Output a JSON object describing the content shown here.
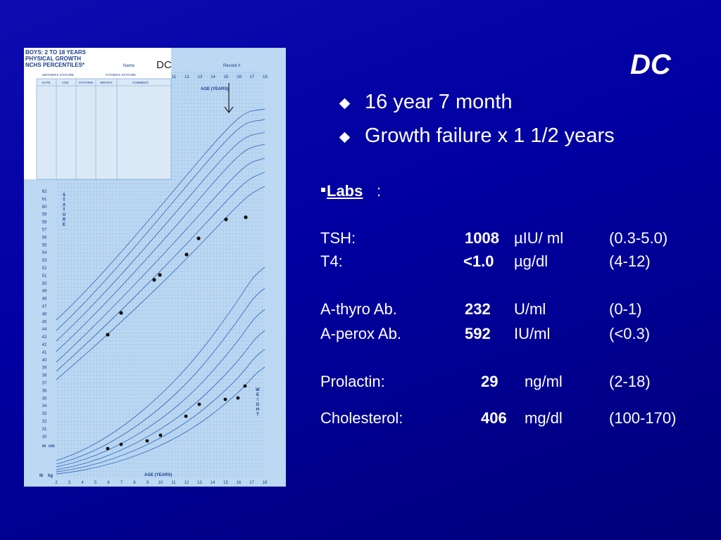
{
  "title": "DC",
  "bullets": [
    "16 year 7 month",
    "Growth failure x 1 1/2 years"
  ],
  "labs": {
    "heading": "Labs",
    "colon": ":",
    "rows": [
      [
        "TSH:",
        "1008",
        "µIU/ ml",
        "(0.3-5.0)"
      ],
      [
        "T4:",
        "<1.0",
        "µg/dl",
        "(4-12)"
      ],
      [
        "A-thyro Ab.",
        "232",
        "U/ml",
        "(0-1)"
      ],
      [
        "A-perox Ab.",
        "592",
        "IU/ml",
        "(<0.3)"
      ],
      [
        "Prolactin:",
        "29",
        "ng/ml",
        "(2-18)"
      ],
      [
        "Cholesterol:",
        "406",
        "mg/dl",
        "(100-170)"
      ]
    ]
  },
  "growth_chart": {
    "header": [
      "BOYS: 2 TO 18 YEARS",
      "PHYSICAL GROWTH",
      "NCHS PERCENTILES*"
    ],
    "name_label": "Name",
    "name": "DC",
    "record_label": "Record #",
    "parents": [
      "MOTHER'S STATURE",
      "FATHER'S STATURE"
    ],
    "columns": [
      "DATE",
      "AGE",
      "STATURE",
      "WEIGHT",
      "COMMENT"
    ],
    "age_label": "AGE (YEARS)",
    "stature_label": "STATURE",
    "weight_label": "WEIGHT",
    "top_ages": [
      11,
      12,
      13,
      14,
      15,
      16,
      17,
      18
    ],
    "ages": [
      2,
      3,
      4,
      5,
      6,
      7,
      8,
      9,
      10,
      11,
      12,
      13,
      14,
      15,
      16,
      17,
      18
    ],
    "stature_in": [
      62,
      61,
      60,
      59,
      58,
      57,
      56,
      55,
      54,
      53,
      52,
      51,
      50,
      49,
      48,
      47,
      46,
      45,
      44,
      43,
      42,
      41,
      40,
      39,
      38,
      37,
      36,
      35,
      34,
      33,
      32,
      31,
      30
    ],
    "units": [
      "in",
      "cm",
      "lb",
      "kg"
    ]
  }
}
